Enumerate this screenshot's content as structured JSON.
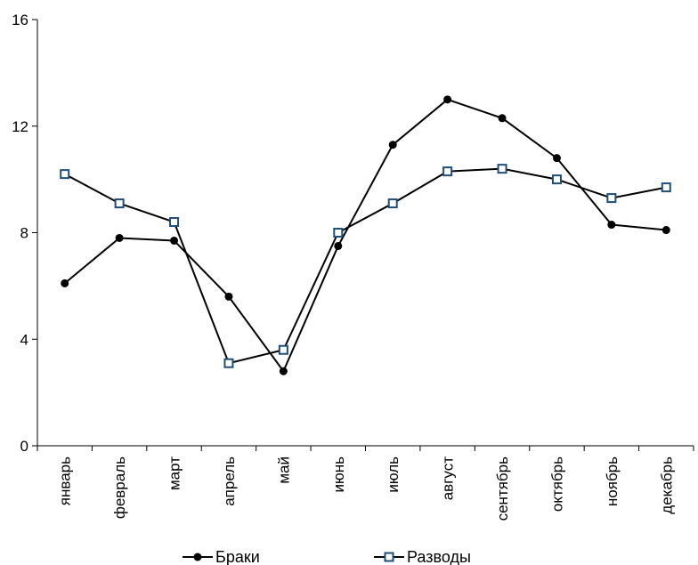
{
  "chart_data": {
    "type": "line",
    "title": "",
    "xlabel": "",
    "ylabel": "",
    "categories": [
      "январь",
      "февраль",
      "март",
      "апрель",
      "май",
      "июнь",
      "июль",
      "август",
      "сентябрь",
      "октябрь",
      "ноябрь",
      "декабрь"
    ],
    "ylim": [
      0,
      16
    ],
    "yticks": [
      0,
      4,
      8,
      12,
      16
    ],
    "grid": false,
    "legend_position": "bottom",
    "series": [
      {
        "name": "Браки",
        "marker": "filled-circle",
        "color": "#000000",
        "values": [
          6.1,
          7.8,
          7.7,
          5.6,
          2.8,
          7.5,
          11.3,
          13.0,
          12.3,
          10.8,
          8.3,
          8.1
        ]
      },
      {
        "name": "Разводы",
        "marker": "open-square",
        "color": "#000000",
        "marker_color": "#1f4e79",
        "values": [
          10.2,
          9.1,
          8.4,
          3.1,
          3.6,
          8.0,
          9.1,
          10.3,
          10.4,
          10.0,
          9.3,
          9.7
        ]
      }
    ]
  }
}
